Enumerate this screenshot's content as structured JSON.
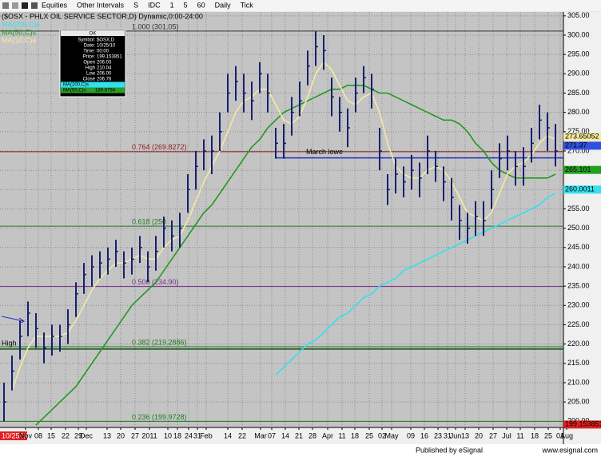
{
  "toolbar": {
    "items": [
      "Equities",
      "Other Intervals",
      "S",
      "IDC",
      "1",
      "5",
      "60",
      "Daily",
      "Tick"
    ]
  },
  "data_window": {
    "header": "OK",
    "rows": [
      [
        "Symbol:",
        "$OSX,D"
      ],
      [
        "Date:",
        "10/25/10"
      ],
      [
        "Time:",
        "00:00"
      ],
      [
        "Price:",
        "199.153851"
      ],
      [
        "Open",
        "206.03"
      ],
      [
        "High",
        "210.04"
      ],
      [
        "Low",
        "206.00"
      ],
      [
        "Close",
        "206.76"
      ]
    ],
    "ma_rows": [
      {
        "label": "MA(200,C)s",
        "value": "",
        "color": "#33e0f0"
      },
      {
        "label": "MA(50,C)s",
        "value": "189.8794",
        "color": "#2a9d2a"
      }
    ]
  },
  "cursor_date": "10/25/10",
  "footer": {
    "left": "Published by eSignal",
    "right": "www.esignal.com"
  },
  "chart_data": {
    "type": "ohlc",
    "title": "($OSX - PHLX OIL SERVICE SECTOR,D) Dynamic,0:00-24:00",
    "ylim": [
      198.4,
      306
    ],
    "xlim": [
      -0.5,
      70
    ],
    "yticks": [
      {
        "value": 200,
        "label": "200.00"
      },
      {
        "value": 205,
        "label": "205.00"
      },
      {
        "value": 210,
        "label": "210.00"
      },
      {
        "value": 215,
        "label": "215.00"
      },
      {
        "value": 220,
        "label": "220.00"
      },
      {
        "value": 225,
        "label": "225.00"
      },
      {
        "value": 230,
        "label": "230.00"
      },
      {
        "value": 235,
        "label": "235.00"
      },
      {
        "value": 240,
        "label": "240.00"
      },
      {
        "value": 245,
        "label": "245.00"
      },
      {
        "value": 250,
        "label": "250.00"
      },
      {
        "value": 255,
        "label": "255.00"
      },
      {
        "value": 260,
        "label": "260.00"
      },
      {
        "value": 265,
        "label": "265.00"
      },
      {
        "value": 270,
        "label": "270.00"
      },
      {
        "value": 275,
        "label": "275.00"
      },
      {
        "value": 280,
        "label": "280.00"
      },
      {
        "value": 285,
        "label": "285.00"
      },
      {
        "value": 290,
        "label": "290.00"
      },
      {
        "value": 295,
        "label": "295.00"
      },
      {
        "value": 300,
        "label": "300.00"
      },
      {
        "value": 305,
        "label": "305.00"
      }
    ],
    "xticks": [
      {
        "value": 2.7,
        "label": "Nov"
      },
      {
        "value": 4.3,
        "label": "08"
      },
      {
        "value": 5.9,
        "label": "15"
      },
      {
        "value": 7.7,
        "label": "22"
      },
      {
        "value": 9.3,
        "label": "29"
      },
      {
        "value": 10.3,
        "label": "Dec"
      },
      {
        "value": 12.9,
        "label": "13"
      },
      {
        "value": 14.6,
        "label": "20"
      },
      {
        "value": 16.4,
        "label": "27"
      },
      {
        "value": 18.2,
        "label": "2011"
      },
      {
        "value": 20.5,
        "label": "10"
      },
      {
        "value": 21.7,
        "label": "18"
      },
      {
        "value": 23.1,
        "label": "24"
      },
      {
        "value": 24.2,
        "label": "31"
      },
      {
        "value": 25.3,
        "label": "Feb"
      },
      {
        "value": 28,
        "label": "14"
      },
      {
        "value": 29.8,
        "label": "22"
      },
      {
        "value": 32.1,
        "label": "Mar"
      },
      {
        "value": 33.5,
        "label": "07"
      },
      {
        "value": 35.2,
        "label": "14"
      },
      {
        "value": 36.9,
        "label": "21"
      },
      {
        "value": 38.6,
        "label": "28"
      },
      {
        "value": 40.5,
        "label": "Apr"
      },
      {
        "value": 42.3,
        "label": "11"
      },
      {
        "value": 43.9,
        "label": "18"
      },
      {
        "value": 45.7,
        "label": "25"
      },
      {
        "value": 47.3,
        "label": "02"
      },
      {
        "value": 48.5,
        "label": "May"
      },
      {
        "value": 50.9,
        "label": "09"
      },
      {
        "value": 52.6,
        "label": "16"
      },
      {
        "value": 54.3,
        "label": "23"
      },
      {
        "value": 55.5,
        "label": "31"
      },
      {
        "value": 56.5,
        "label": "Jun"
      },
      {
        "value": 57.7,
        "label": "13"
      },
      {
        "value": 59.4,
        "label": "20"
      },
      {
        "value": 61.2,
        "label": "27"
      },
      {
        "value": 62.9,
        "label": "Jul"
      },
      {
        "value": 64.6,
        "label": "11"
      },
      {
        "value": 66.4,
        "label": "18"
      },
      {
        "value": 68.1,
        "label": "25"
      },
      {
        "value": 69.6,
        "label": "01"
      },
      {
        "value": 70.4,
        "label": "Aug"
      }
    ],
    "grid": true,
    "bars": {
      "color": "#14206e",
      "high": [
        210,
        217,
        226,
        231,
        228,
        223,
        225,
        225,
        229,
        236,
        241,
        243,
        244,
        245,
        247,
        244,
        245,
        248,
        244,
        248,
        253,
        252,
        254,
        264,
        270,
        273,
        274,
        280,
        290,
        292,
        290,
        288,
        293,
        290,
        276,
        277,
        284,
        288,
        296,
        301,
        300,
        289,
        284,
        281,
        289,
        292,
        290,
        276,
        264,
        268,
        266,
        269,
        267,
        274,
        270,
        266,
        263,
        256,
        254,
        257,
        257,
        265,
        272,
        274,
        270,
        271,
        276,
        282,
        280,
        277
      ],
      "low": [
        200,
        208,
        216,
        222,
        219,
        215,
        217,
        218,
        220,
        227,
        233,
        235,
        237,
        238,
        240,
        237,
        238,
        241,
        236,
        239,
        245,
        244,
        245,
        254,
        260,
        265,
        264,
        270,
        280,
        283,
        280,
        278,
        285,
        280,
        268,
        268,
        274,
        279,
        287,
        292,
        291,
        279,
        275,
        271,
        280,
        285,
        281,
        265,
        256,
        259,
        258,
        260,
        258,
        264,
        262,
        257,
        252,
        247,
        246,
        248,
        248,
        255,
        263,
        265,
        261,
        261,
        267,
        273,
        270,
        266
      ],
      "close": [
        205,
        213,
        222,
        228,
        224,
        219,
        222,
        222,
        225,
        233,
        238,
        240,
        241,
        242,
        244,
        241,
        242,
        245,
        240,
        244,
        250,
        248,
        250,
        260,
        266,
        270,
        270,
        275,
        285,
        288,
        285,
        283,
        290,
        285,
        272,
        272,
        280,
        283,
        292,
        297,
        296,
        284,
        280,
        276,
        285,
        289,
        286,
        270,
        260,
        264,
        262,
        265,
        263,
        270,
        266,
        262,
        258,
        252,
        250,
        253,
        252,
        260,
        268,
        270,
        266,
        266,
        272,
        278,
        276,
        270
      ]
    },
    "series": [
      {
        "name": "MA(200,C)s",
        "color": "#33e0f0",
        "values": [
          null,
          null,
          null,
          null,
          null,
          null,
          null,
          null,
          null,
          null,
          null,
          null,
          null,
          null,
          null,
          null,
          null,
          null,
          null,
          null,
          null,
          null,
          null,
          null,
          null,
          null,
          null,
          null,
          null,
          null,
          null,
          null,
          null,
          null,
          212,
          214,
          216,
          218,
          220,
          221,
          223,
          225,
          227,
          228,
          230,
          232,
          233,
          235,
          236,
          237,
          239,
          240,
          241,
          242,
          243,
          244,
          245,
          246,
          247,
          248,
          249,
          250,
          251,
          252,
          253,
          254,
          255,
          256,
          258,
          259
        ]
      },
      {
        "name": "MA(50,C)s",
        "color": "#1f9a1f",
        "values": [
          null,
          null,
          null,
          null,
          199,
          201,
          203,
          205,
          207,
          209,
          212,
          215,
          218,
          221,
          224,
          227,
          230,
          232,
          234,
          236,
          239,
          242,
          245,
          248,
          251,
          254,
          256,
          259,
          262,
          265,
          268,
          271,
          273,
          276,
          278,
          280,
          281,
          282,
          283,
          284,
          285,
          286,
          286,
          287,
          287,
          287,
          286,
          285,
          285,
          284,
          283,
          282,
          281,
          280,
          279,
          278,
          278,
          277,
          275,
          272,
          270,
          267,
          265,
          264,
          263,
          263,
          263,
          263,
          263,
          264
        ]
      },
      {
        "name": "MA(10,C)e",
        "color": "#f5eaa0",
        "values": [
          null,
          208,
          214,
          219,
          222,
          222,
          222,
          222,
          223,
          226,
          230,
          234,
          237,
          239,
          241,
          241,
          242,
          243,
          242,
          242,
          245,
          247,
          248,
          252,
          257,
          262,
          266,
          270,
          275,
          280,
          283,
          284,
          286,
          286,
          282,
          278,
          277,
          279,
          284,
          290,
          293,
          291,
          287,
          283,
          282,
          284,
          285,
          280,
          272,
          266,
          264,
          263,
          263,
          265,
          266,
          265,
          262,
          258,
          254,
          253,
          252,
          254,
          259,
          264,
          266,
          267,
          269,
          272,
          274,
          273
        ]
      }
    ],
    "levels": [
      {
        "label": "1.000 (301.05)",
        "value": 301.05,
        "color": "#303030"
      },
      {
        "label": "0.764 (269.8272)",
        "value": 269.8272,
        "color": "#8b1a1a"
      },
      {
        "label": "0.618 (250",
        "value": 250.52,
        "color": "#1f7a1f"
      },
      {
        "label": "0.500 (234.90)",
        "value": 234.9,
        "color": "#7b2d8b"
      },
      {
        "label": "0.382 (219.2886)",
        "value": 219.2886,
        "color": "#1f7a1f"
      },
      {
        "label": "0.236 (199.9728)",
        "value": 199.9728,
        "color": "#1f7a1f"
      }
    ],
    "annotations": [
      {
        "label": "March lowe",
        "value": 268.2,
        "start": 34,
        "color": "#2030c0"
      },
      {
        "label": "High",
        "value": 218.7,
        "start": -0.5,
        "color": "#0d4d0d"
      }
    ],
    "price_flags": [
      {
        "value": 273.65052,
        "color": "#f5eaa0"
      },
      {
        "value": 271.37,
        "color": "#3050e0"
      },
      {
        "value": 265.101,
        "color": "#22a022"
      },
      {
        "value": 260.0011,
        "color": "#33e0f0"
      },
      {
        "value": 199.153851,
        "color": "#e02020"
      }
    ]
  }
}
